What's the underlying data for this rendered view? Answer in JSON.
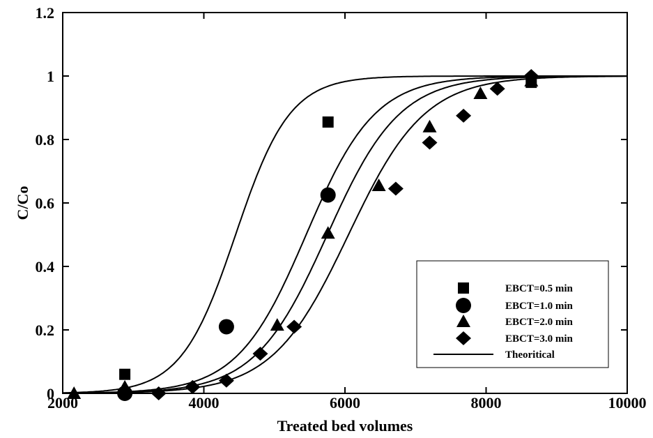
{
  "chart_data": {
    "type": "scatter",
    "xlabel": "Treated bed volumes",
    "ylabel": "C/Co",
    "xlim": [
      2000,
      10000
    ],
    "ylim": [
      0,
      1.2
    ],
    "xticks": [
      2000,
      4000,
      6000,
      8000,
      10000
    ],
    "yticks": [
      0,
      0.2,
      0.4,
      0.6,
      0.8,
      1,
      1.2
    ],
    "xtick_labels": [
      "2000",
      "4000",
      "6000",
      "8000",
      "10000"
    ],
    "ytick_labels": [
      "0",
      "0.2",
      "0.4",
      "0.6",
      "0.8",
      "1",
      "1.2"
    ],
    "grid": false,
    "legend_position": "bottom-right",
    "series": [
      {
        "name": "EBCT=0.5 min",
        "marker": "square",
        "x": [
          2880,
          5760,
          8640
        ],
        "y": [
          0.06,
          0.855,
          0.98
        ]
      },
      {
        "name": "EBCT=1.0 min",
        "marker": "circle",
        "x": [
          2880,
          4320,
          5760
        ],
        "y": [
          0.0,
          0.21,
          0.625
        ]
      },
      {
        "name": "EBCT=2.0 min",
        "marker": "triangle",
        "x": [
          2160,
          2880,
          5040,
          5760,
          6480,
          7200,
          7920,
          8640
        ],
        "y": [
          0.0,
          0.02,
          0.215,
          0.505,
          0.655,
          0.84,
          0.945,
          0.985
        ]
      },
      {
        "name": "EBCT=3.0 min",
        "marker": "diamond",
        "x": [
          3360,
          3840,
          4320,
          4800,
          5280,
          6720,
          7200,
          7680,
          8160,
          8640
        ],
        "y": [
          0.0,
          0.02,
          0.04,
          0.125,
          0.21,
          0.645,
          0.79,
          0.875,
          0.96,
          1.0
        ]
      }
    ],
    "theoretical_label": "Theoritical",
    "theoretical_curves": [
      {
        "x50": 4450,
        "k": 0.0026
      },
      {
        "x50": 5450,
        "k": 0.00205
      },
      {
        "x50": 5750,
        "k": 0.00195
      },
      {
        "x50": 6050,
        "k": 0.00185
      }
    ]
  }
}
